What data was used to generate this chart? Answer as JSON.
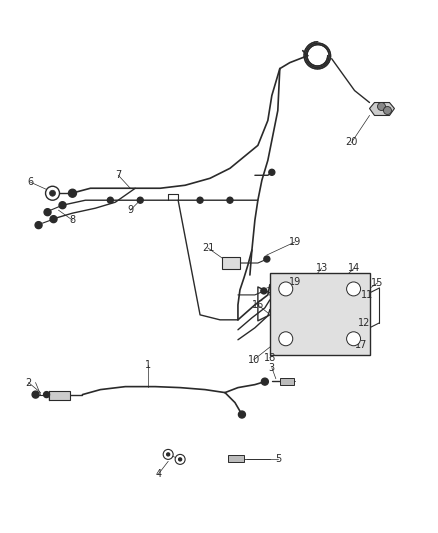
{
  "bg_color": "#ffffff",
  "line_color": "#2a2a2a",
  "text_color": "#2a2a2a",
  "figsize": [
    4.38,
    5.33
  ],
  "dpi": 100,
  "font_size": 7.0
}
